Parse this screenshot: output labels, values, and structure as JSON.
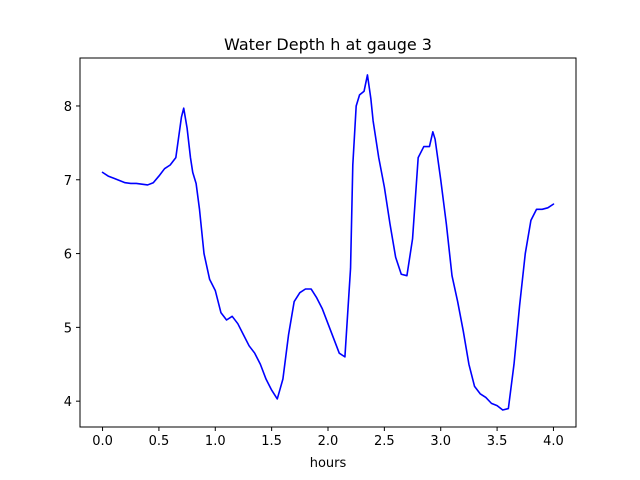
{
  "chart_data": {
    "type": "line",
    "title": "Water Depth h at gauge 3",
    "xlabel": "hours",
    "ylabel": "",
    "xlim": [
      -0.2,
      4.2
    ],
    "ylim": [
      3.65,
      8.65
    ],
    "xticks": [
      0.0,
      0.5,
      1.0,
      1.5,
      2.0,
      2.5,
      3.0,
      3.5,
      4.0
    ],
    "xtick_labels": [
      "0.0",
      "0.5",
      "1.0",
      "1.5",
      "2.0",
      "2.5",
      "3.0",
      "3.5",
      "4.0"
    ],
    "yticks": [
      4,
      5,
      6,
      7,
      8
    ],
    "ytick_labels": [
      "4",
      "5",
      "6",
      "7",
      "8"
    ],
    "grid": false,
    "line_color": "#0000ff",
    "series": [
      {
        "x": [
          0.0,
          0.05,
          0.1,
          0.15,
          0.2,
          0.25,
          0.3,
          0.35,
          0.4,
          0.45,
          0.5,
          0.55,
          0.6,
          0.65,
          0.7,
          0.72,
          0.75,
          0.78,
          0.8,
          0.83,
          0.86,
          0.9,
          0.95,
          1.0,
          1.05,
          1.1,
          1.15,
          1.2,
          1.25,
          1.3,
          1.35,
          1.4,
          1.45,
          1.5,
          1.55,
          1.6,
          1.65,
          1.7,
          1.75,
          1.8,
          1.85,
          1.9,
          1.95,
          2.0,
          2.05,
          2.1,
          2.15,
          2.2,
          2.22,
          2.25,
          2.28,
          2.32,
          2.35,
          2.38,
          2.4,
          2.45,
          2.5,
          2.55,
          2.6,
          2.65,
          2.7,
          2.75,
          2.8,
          2.85,
          2.9,
          2.93,
          2.95,
          3.0,
          3.05,
          3.1,
          3.15,
          3.2,
          3.25,
          3.3,
          3.35,
          3.4,
          3.45,
          3.5,
          3.55,
          3.6,
          3.65,
          3.7,
          3.75,
          3.8,
          3.85,
          3.9,
          3.95,
          4.0
        ],
        "y": [
          7.1,
          7.05,
          7.02,
          6.99,
          6.96,
          6.95,
          6.95,
          6.94,
          6.93,
          6.96,
          7.05,
          7.15,
          7.2,
          7.3,
          7.85,
          7.97,
          7.7,
          7.3,
          7.1,
          6.95,
          6.6,
          6.0,
          5.65,
          5.5,
          5.2,
          5.1,
          5.15,
          5.05,
          4.9,
          4.75,
          4.65,
          4.5,
          4.3,
          4.15,
          4.03,
          4.3,
          4.9,
          5.35,
          5.47,
          5.52,
          5.52,
          5.4,
          5.25,
          5.05,
          4.85,
          4.65,
          4.6,
          5.8,
          7.2,
          8.0,
          8.15,
          8.2,
          8.42,
          8.1,
          7.8,
          7.3,
          6.9,
          6.4,
          5.95,
          5.72,
          5.7,
          6.2,
          7.3,
          7.45,
          7.45,
          7.65,
          7.55,
          7.0,
          6.4,
          5.7,
          5.35,
          4.95,
          4.5,
          4.2,
          4.1,
          4.05,
          3.97,
          3.94,
          3.88,
          3.9,
          4.5,
          5.3,
          6.0,
          6.45,
          6.6,
          6.6,
          6.62,
          6.67
        ]
      }
    ]
  }
}
